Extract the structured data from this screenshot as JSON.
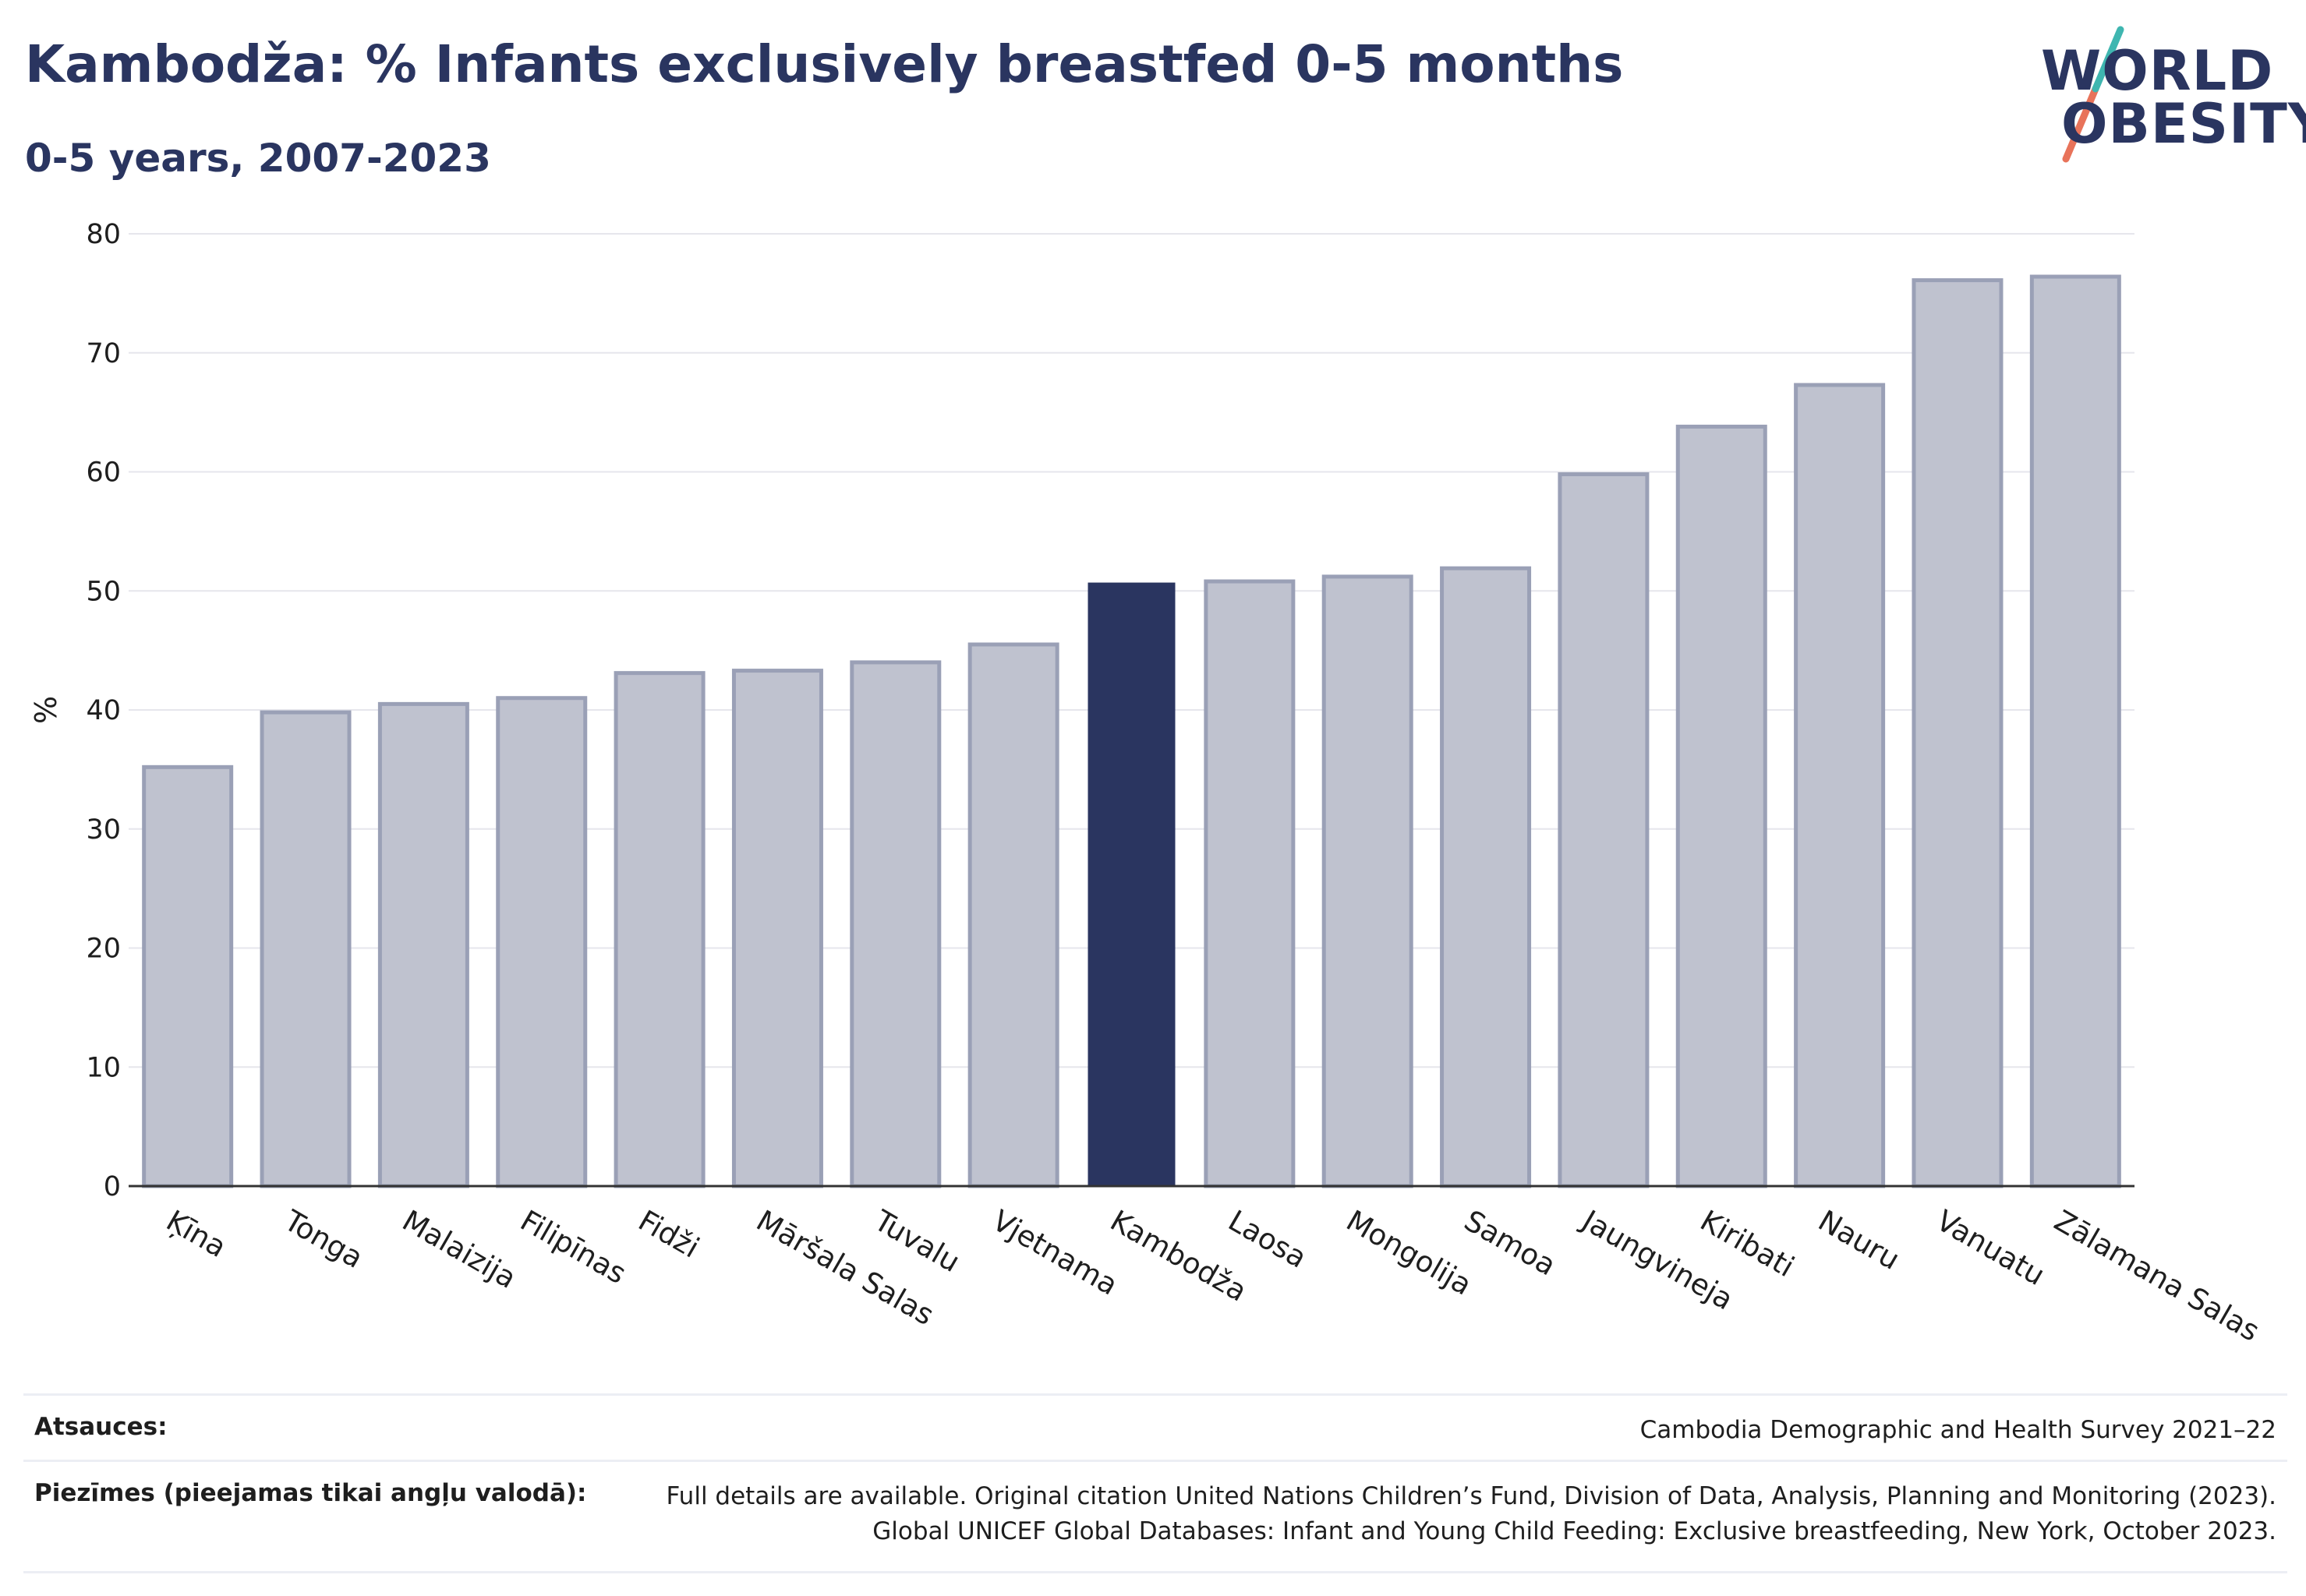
{
  "header": {
    "title": "Kambodža: % Infants exclusively breastfed 0-5 months",
    "subtitle": "0-5 years, 2007-2023"
  },
  "logo": {
    "line1": "WORLD",
    "line2": "OBESITY",
    "slash_colors": [
      "#e8735a",
      "#3fb6b0"
    ]
  },
  "colors": {
    "highlight": "#2a3560",
    "bar": "#bfc2cf",
    "bar_border": "#9aa0b6",
    "axis": "#333333",
    "grid": "#e6e6ec"
  },
  "chart_data": {
    "type": "bar",
    "title": "Kambodža: % Infants exclusively breastfed 0-5 months",
    "subtitle": "0-5 years, 2007-2023",
    "xlabel": "",
    "ylabel": "%",
    "ylim": [
      0,
      80
    ],
    "yticks": [
      0,
      10,
      20,
      30,
      40,
      50,
      60,
      70,
      80
    ],
    "grid": true,
    "highlight": "Kambodža",
    "categories": [
      "Ķīna",
      "Tonga",
      "Malaizija",
      "Filipīnas",
      "Fidži",
      "Māršala Salas",
      "Tuvalu",
      "Vjetnama",
      "Kambodža",
      "Laosa",
      "Mongolija",
      "Samoa",
      "Jaungvineja",
      "Kiribati",
      "Nauru",
      "Vanuatu",
      "Zālamana Salas"
    ],
    "values": [
      35.2,
      39.8,
      40.5,
      41.0,
      43.1,
      43.3,
      44.0,
      45.5,
      50.7,
      50.8,
      51.2,
      51.9,
      59.8,
      63.8,
      67.3,
      76.1,
      76.4
    ]
  },
  "footer": {
    "sources_label": "Atsauces:",
    "sources_value": "Cambodia Demographic and Health Survey 2021–22",
    "notes_label": "Piezīmes (pieejamas tikai angļu valodā):",
    "notes_line1": "Full details are available. Original citation United Nations Children’s Fund, Division of Data, Analysis, Planning and Monitoring (2023).",
    "notes_line2": "Global UNICEF Global Databases: Infant and Young Child Feeding: Exclusive breastfeeding, New York, October 2023."
  }
}
